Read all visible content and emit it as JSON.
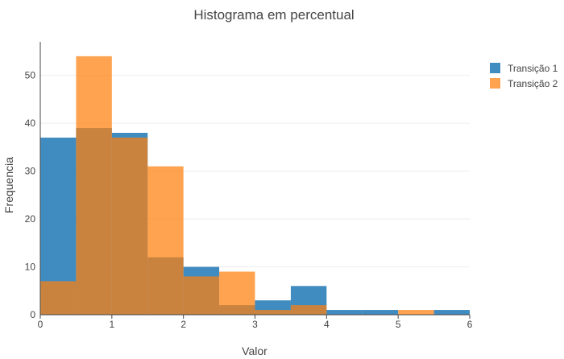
{
  "chart_data": {
    "type": "bar",
    "title": "Histograma em percentual",
    "xlabel": "Valor",
    "ylabel": "Frequencia",
    "xlim": [
      0,
      6
    ],
    "ylim": [
      0,
      57
    ],
    "xticks": [
      "0",
      "1",
      "2",
      "3",
      "4",
      "5",
      "6"
    ],
    "yticks": [
      "0",
      "10",
      "20",
      "30",
      "40",
      "50"
    ],
    "bin_edges": [
      0,
      0.5,
      1.0,
      1.5,
      2.0,
      2.5,
      3.0,
      3.5,
      4.0,
      4.5,
      5.0,
      5.5,
      6.0
    ],
    "series": [
      {
        "name": "Transição 1",
        "color": "#1f77b4",
        "values": [
          37,
          39,
          38,
          12,
          10,
          2,
          3,
          6,
          1,
          1,
          0,
          1
        ]
      },
      {
        "name": "Transição 2",
        "color": "#ff7f0e",
        "values": [
          7,
          54,
          37,
          31,
          8,
          9,
          1,
          2,
          0,
          0,
          1,
          0
        ]
      }
    ],
    "grid": true,
    "legend_position": "top-right",
    "barmode": "overlay"
  }
}
